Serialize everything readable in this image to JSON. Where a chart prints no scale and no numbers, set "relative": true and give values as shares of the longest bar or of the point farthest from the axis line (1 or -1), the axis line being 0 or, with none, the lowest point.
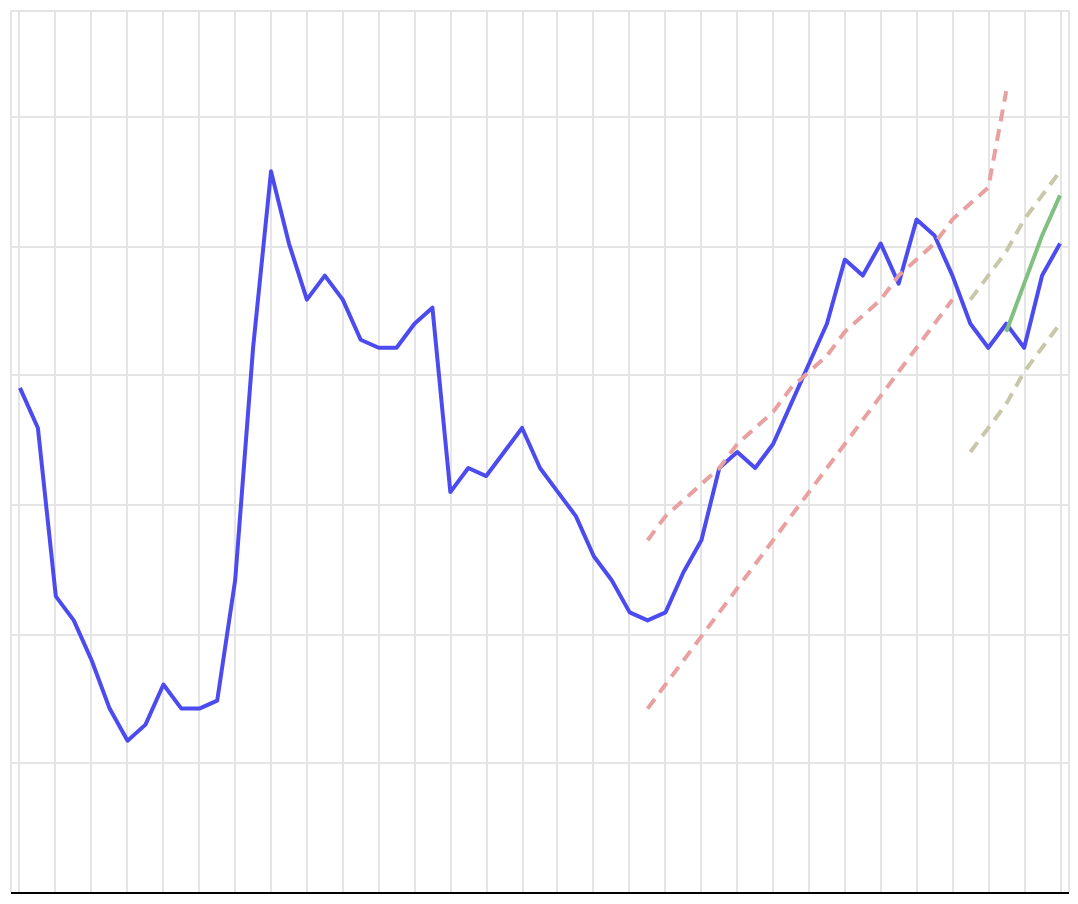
{
  "chart_data": {
    "type": "line",
    "relative": true,
    "grid": true,
    "categories": [
      null,
      null,
      null,
      null,
      null,
      null,
      null,
      null,
      null,
      null,
      null,
      null,
      null,
      null,
      null,
      null,
      null,
      null,
      null,
      null,
      null,
      null,
      null,
      null,
      null,
      null,
      null,
      null,
      null,
      null,
      null,
      null,
      null,
      null,
      null,
      null,
      null,
      null,
      null,
      null,
      null,
      null,
      null,
      null,
      null,
      null,
      null,
      null,
      null,
      null,
      null,
      null,
      null,
      null,
      null,
      null,
      null,
      null,
      null
    ],
    "series": [
      {
        "color": "#4b4bf0",
        "values": [
          0.63,
          0.58,
          0.37,
          0.34,
          0.29,
          0.23,
          0.19,
          0.21,
          0.26,
          0.23,
          0.23,
          0.24,
          0.39,
          0.68,
          0.9,
          0.81,
          0.74,
          0.77,
          0.74,
          0.69,
          0.68,
          0.68,
          0.71,
          0.73,
          0.5,
          0.53,
          0.52,
          0.55,
          0.58,
          0.53,
          0.5,
          0.47,
          0.42,
          0.39,
          0.35,
          0.34,
          0.35,
          0.4,
          0.44,
          0.53,
          0.55,
          0.53,
          0.56,
          0.61,
          0.66,
          0.71,
          0.79,
          0.77,
          0.81,
          0.76,
          0.84,
          0.82,
          0.77,
          0.71,
          0.68,
          0.71,
          0.68,
          0.77,
          0.81
        ]
      },
      {
        "color": "#e8a0a0",
        "line_style": "dashed",
        "values": [
          null,
          null,
          null,
          null,
          null,
          null,
          null,
          null,
          null,
          null,
          null,
          null,
          null,
          null,
          null,
          null,
          null,
          null,
          null,
          null,
          null,
          null,
          null,
          null,
          null,
          null,
          null,
          null,
          null,
          null,
          null,
          null,
          null,
          null,
          null,
          0.44,
          0.47,
          0.49,
          0.51,
          0.53,
          0.56,
          0.58,
          0.6,
          0.63,
          0.65,
          0.67,
          0.7,
          0.72,
          0.74,
          0.77,
          0.79,
          0.81,
          0.84,
          0.86,
          0.88,
          1.0,
          null,
          null,
          null
        ]
      },
      {
        "color": "#e8a0a0",
        "line_style": "dashed",
        "values": [
          null,
          null,
          null,
          null,
          null,
          null,
          null,
          null,
          null,
          null,
          null,
          null,
          null,
          null,
          null,
          null,
          null,
          null,
          null,
          null,
          null,
          null,
          null,
          null,
          null,
          null,
          null,
          null,
          null,
          null,
          null,
          null,
          null,
          null,
          null,
          0.23,
          0.26,
          0.29,
          0.32,
          0.35,
          0.38,
          0.41,
          0.44,
          0.47,
          0.5,
          0.53,
          0.56,
          0.59,
          0.62,
          0.65,
          0.68,
          0.71,
          0.74,
          null,
          null,
          null,
          null,
          null,
          null
        ]
      },
      {
        "color": "#c8c8a8",
        "line_style": "dashed",
        "values": [
          null,
          null,
          null,
          null,
          null,
          null,
          null,
          null,
          null,
          null,
          null,
          null,
          null,
          null,
          null,
          null,
          null,
          null,
          null,
          null,
          null,
          null,
          null,
          null,
          null,
          null,
          null,
          null,
          null,
          null,
          null,
          null,
          null,
          null,
          null,
          null,
          null,
          null,
          null,
          null,
          null,
          null,
          null,
          null,
          null,
          null,
          null,
          null,
          null,
          null,
          null,
          null,
          null,
          0.74,
          0.77,
          0.8,
          0.84,
          0.87,
          0.9
        ]
      },
      {
        "color": "#c8c8a8",
        "line_style": "dashed",
        "values": [
          null,
          null,
          null,
          null,
          null,
          null,
          null,
          null,
          null,
          null,
          null,
          null,
          null,
          null,
          null,
          null,
          null,
          null,
          null,
          null,
          null,
          null,
          null,
          null,
          null,
          null,
          null,
          null,
          null,
          null,
          null,
          null,
          null,
          null,
          null,
          null,
          null,
          null,
          null,
          null,
          null,
          null,
          null,
          null,
          null,
          null,
          null,
          null,
          null,
          null,
          null,
          null,
          null,
          0.55,
          0.58,
          0.61,
          0.65,
          0.68,
          0.71
        ]
      },
      {
        "color": "#80c080",
        "values": [
          null,
          null,
          null,
          null,
          null,
          null,
          null,
          null,
          null,
          null,
          null,
          null,
          null,
          null,
          null,
          null,
          null,
          null,
          null,
          null,
          null,
          null,
          null,
          null,
          null,
          null,
          null,
          null,
          null,
          null,
          null,
          null,
          null,
          null,
          null,
          null,
          null,
          null,
          null,
          null,
          null,
          null,
          null,
          null,
          null,
          null,
          null,
          null,
          null,
          null,
          null,
          null,
          null,
          null,
          null,
          0.7,
          0.76,
          0.82,
          0.87
        ]
      }
    ]
  }
}
